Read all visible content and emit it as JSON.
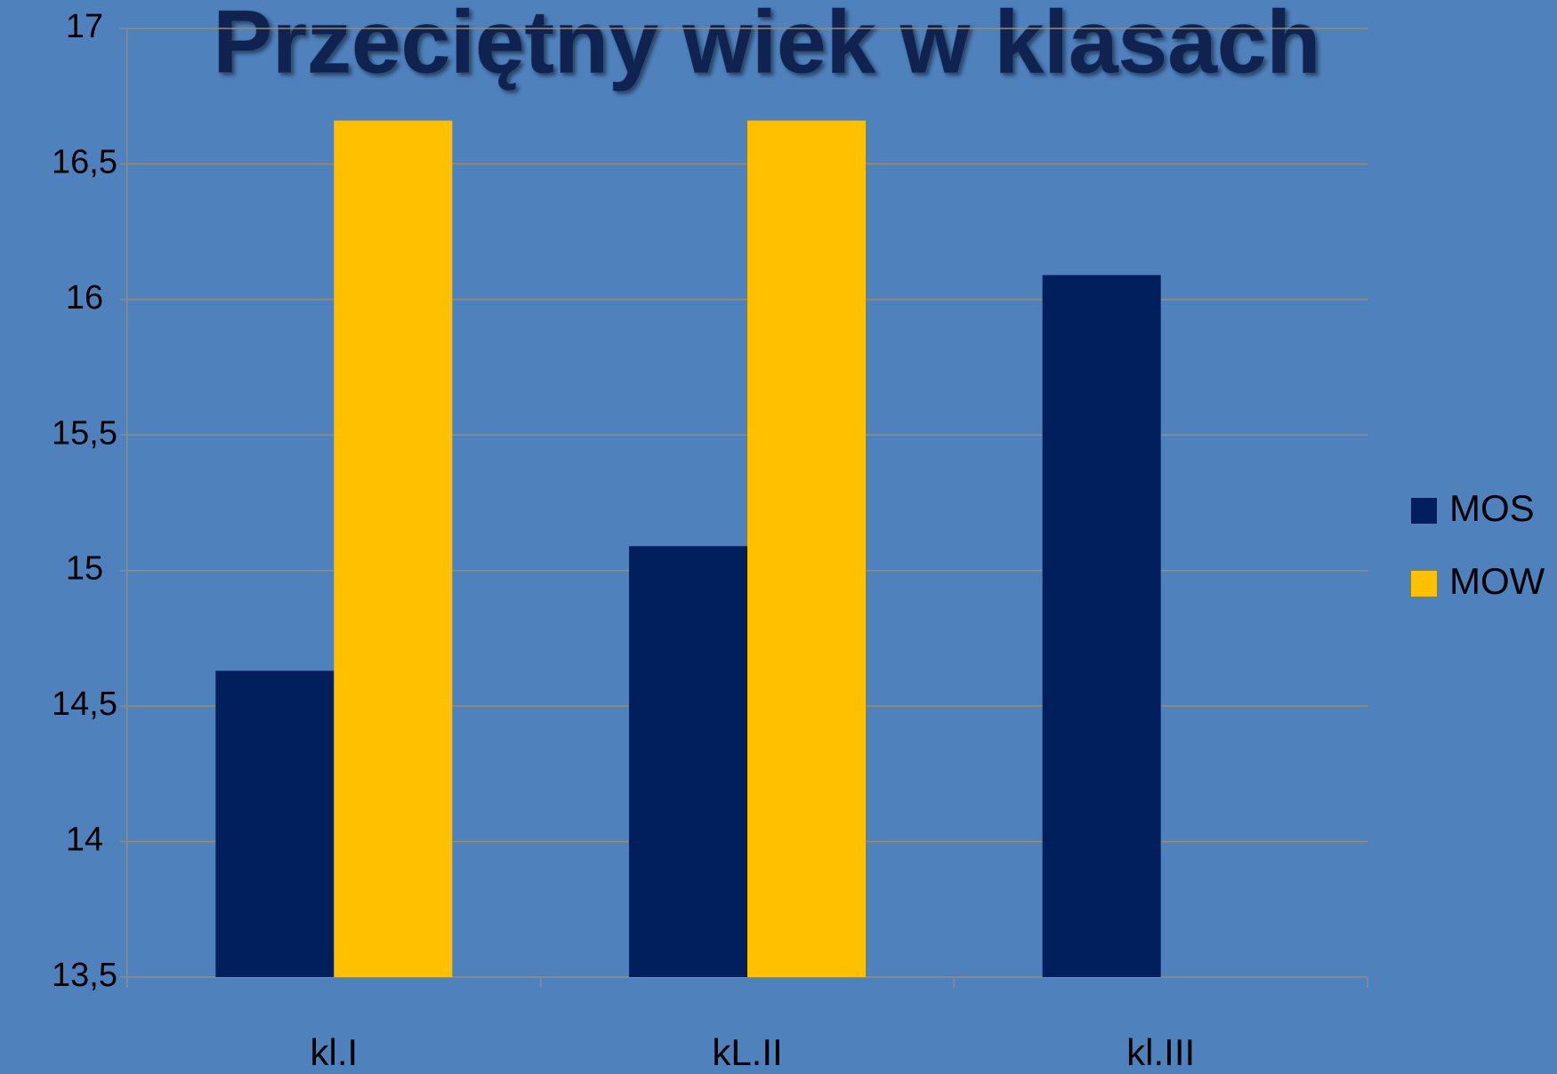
{
  "chart_data": {
    "type": "bar",
    "title": "Przeciętny wiek w klasach",
    "categories": [
      "kl.I",
      "kL.II",
      "kl.III"
    ],
    "series": [
      {
        "name": "MOS",
        "color": "#001f5c",
        "values": [
          14.63,
          15.09,
          16.09
        ]
      },
      {
        "name": "MOW",
        "color": "#ffc000",
        "values": [
          16.66,
          16.66,
          null
        ]
      }
    ],
    "ylim": [
      13.5,
      17
    ],
    "yticks": [
      {
        "value": 13.5,
        "label": "13,5"
      },
      14,
      {
        "value": 14.5,
        "label": "14,5"
      },
      15,
      {
        "value": 15.5,
        "label": "15,5"
      },
      16,
      {
        "value": 16.5,
        "label": "16,5"
      },
      17
    ],
    "grid": true,
    "legend": "right"
  }
}
